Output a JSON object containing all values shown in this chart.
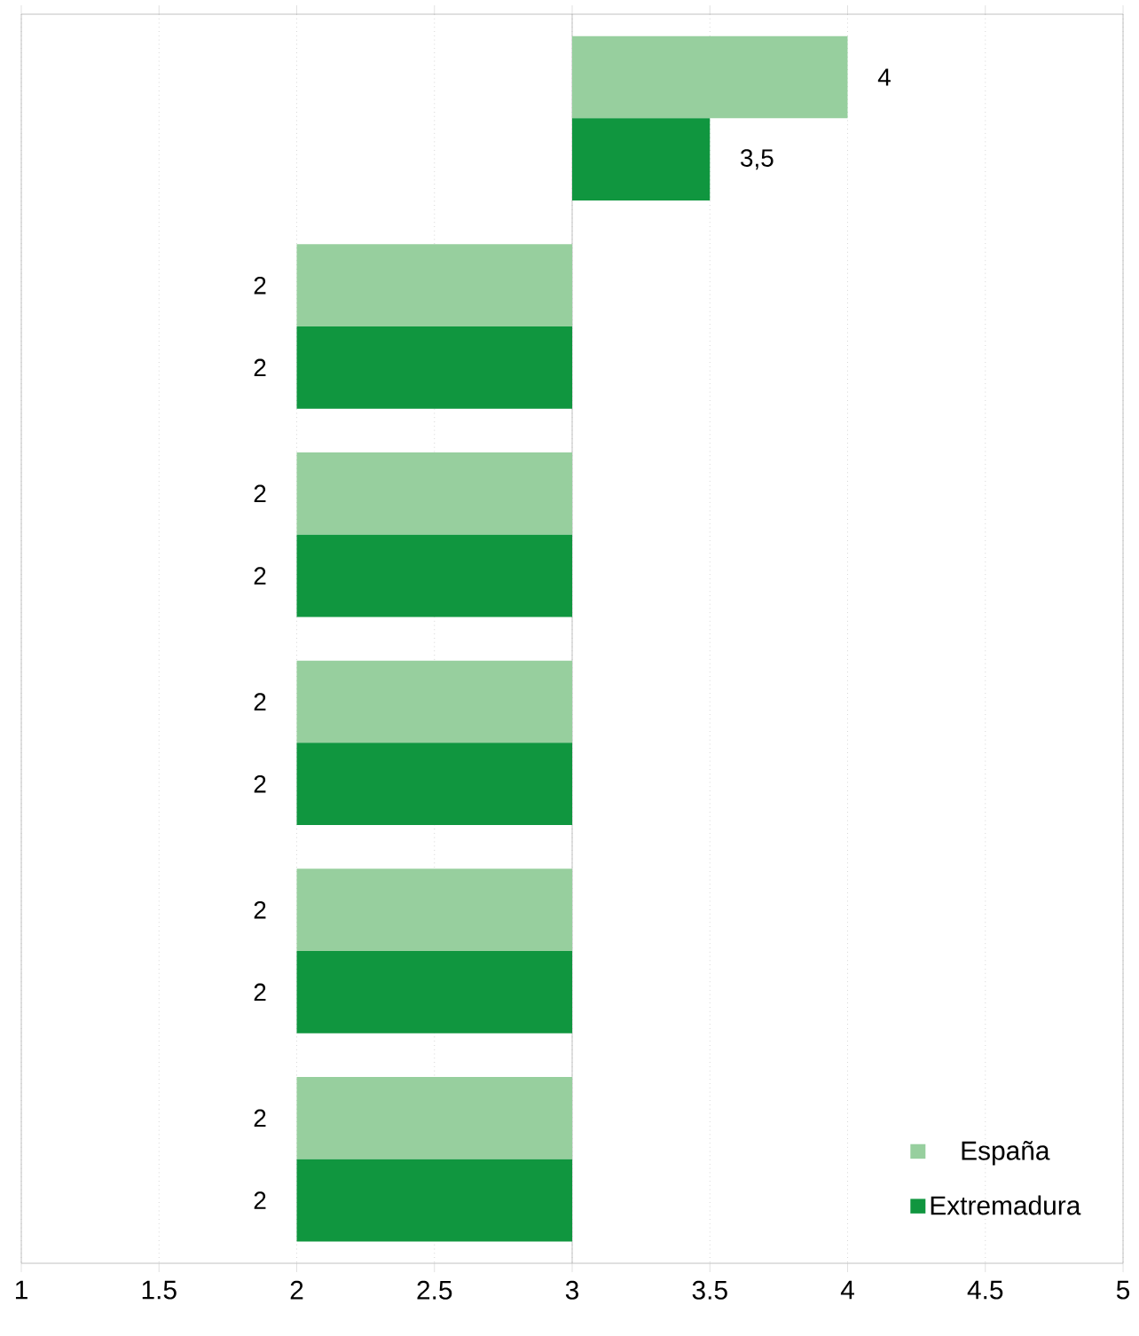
{
  "chart_data": {
    "type": "bar",
    "orientation": "horizontal",
    "categories": [
      null,
      null,
      null,
      null,
      null,
      null
    ],
    "series": [
      {
        "name": "España",
        "color": "#97cf9e",
        "base": [
          3,
          3,
          3,
          3,
          3,
          3
        ],
        "values": [
          1,
          -1,
          -1,
          -1,
          -1,
          -1
        ],
        "value_labels": [
          "4",
          "2",
          "2",
          "2",
          "2",
          "2"
        ]
      },
      {
        "name": "Extremadura",
        "color": "#10963f",
        "base": [
          3,
          3,
          3,
          3,
          3,
          3
        ],
        "values": [
          0.5,
          -1,
          -1,
          -1,
          -1,
          -1
        ],
        "value_labels": [
          "3,5",
          "2",
          "2",
          "2",
          "2",
          "2"
        ]
      }
    ],
    "xlim": [
      1,
      5
    ],
    "xticks": [
      1,
      1.5,
      2,
      2.5,
      3,
      3.5,
      4,
      4.5,
      5
    ],
    "ref_lines": [
      {
        "axis": "x",
        "value": 3,
        "color": "#b2b2b2"
      }
    ],
    "grid": "x",
    "legend": "bottom right"
  }
}
